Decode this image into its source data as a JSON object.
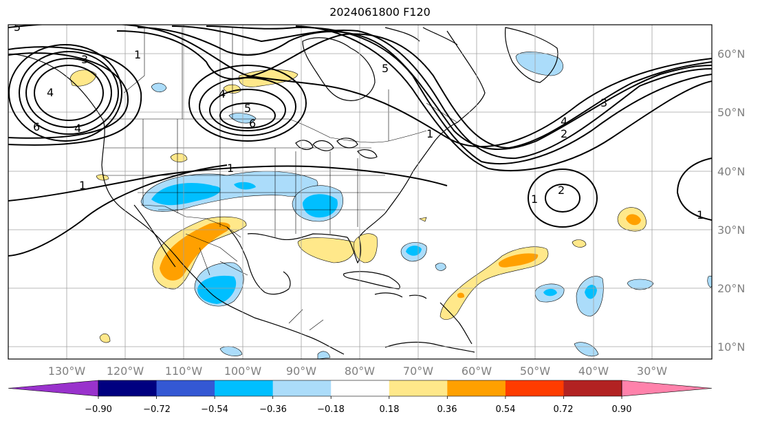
{
  "title": "2024061800 F120",
  "map": {
    "lat_labels": [
      "60°N",
      "50°N",
      "40°N",
      "30°N",
      "20°N",
      "10°N"
    ],
    "lon_labels": [
      "130°W",
      "120°W",
      "110°W",
      "100°W",
      "90°W",
      "80°W",
      "70°W",
      "60°W",
      "50°W",
      "40°W",
      "30°W"
    ]
  },
  "contour_labels": [
    "3",
    "4",
    "6",
    "4",
    "1",
    "1",
    "4",
    "5",
    "6",
    "5",
    "1",
    "5",
    "3",
    "4",
    "2",
    "1",
    "2",
    "1",
    "1"
  ],
  "colorbar": {
    "ticks": [
      "−0.90",
      "−0.72",
      "−0.54",
      "−0.36",
      "−0.18",
      "0.18",
      "0.36",
      "0.54",
      "0.72",
      "0.90"
    ],
    "colors": [
      "#9932cc",
      "#000080",
      "#3458d4",
      "#00bfff",
      "#abdcfa",
      "#ffffff",
      "#ffe88a",
      "#ffa000",
      "#ff3c00",
      "#b22222",
      "#ff82ab"
    ]
  }
}
